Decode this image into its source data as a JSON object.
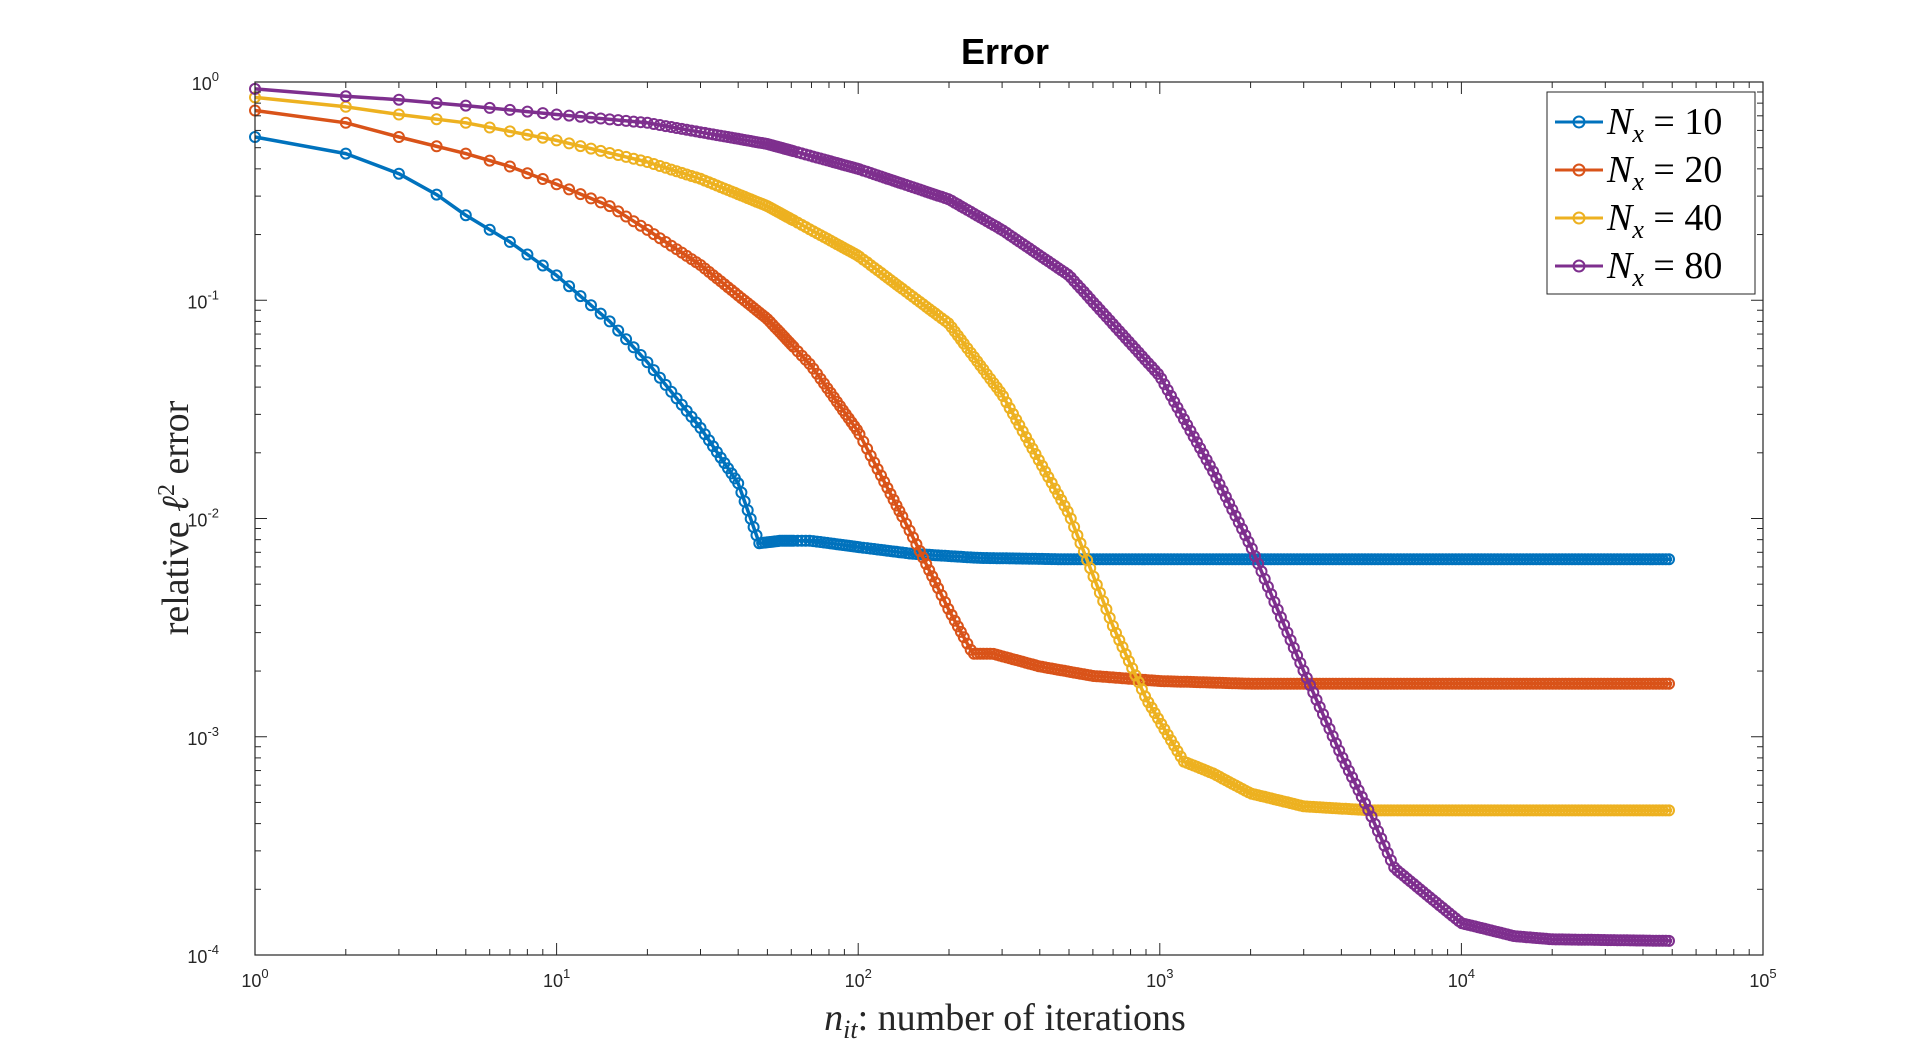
{
  "chart_data": {
    "type": "line",
    "title": "Error",
    "xlabel": {
      "symbol": "n",
      "subscript": "it",
      "text": ": number of iterations"
    },
    "ylabel": {
      "text_before": "relative ",
      "symbol": "ℓ",
      "superscript": "2",
      "text_after": " error"
    },
    "xscale": "log",
    "yscale": "log",
    "xlim": [
      1,
      100000
    ],
    "ylim": [
      0.0001,
      1
    ],
    "xticks": [
      {
        "base": "10",
        "exp": "0",
        "value": 1
      },
      {
        "base": "10",
        "exp": "1",
        "value": 10
      },
      {
        "base": "10",
        "exp": "2",
        "value": 100
      },
      {
        "base": "10",
        "exp": "3",
        "value": 1000
      },
      {
        "base": "10",
        "exp": "4",
        "value": 10000
      },
      {
        "base": "10",
        "exp": "5",
        "value": 100000
      }
    ],
    "yticks": [
      {
        "base": "10",
        "exp": "0",
        "value": 1
      },
      {
        "base": "10",
        "exp": "-1",
        "value": 0.1
      },
      {
        "base": "10",
        "exp": "-2",
        "value": 0.01
      },
      {
        "base": "10",
        "exp": "-3",
        "value": 0.001
      },
      {
        "base": "10",
        "exp": "-4",
        "value": 0.0001
      }
    ],
    "grid": false,
    "legend_position": "top-right",
    "series": [
      {
        "name": "N_x = 10",
        "legend": {
          "symbol": "N",
          "subscript": "x",
          "text": " = 10"
        },
        "color": "#0072BD",
        "points": [
          [
            1,
            0.56
          ],
          [
            2,
            0.47
          ],
          [
            3,
            0.38
          ],
          [
            4,
            0.305
          ],
          [
            5,
            0.245
          ],
          [
            7,
            0.185
          ],
          [
            10,
            0.13
          ],
          [
            15,
            0.08
          ],
          [
            20,
            0.052
          ],
          [
            30,
            0.026
          ],
          [
            40,
            0.0145
          ],
          [
            47,
            0.0077
          ],
          [
            55,
            0.0079
          ],
          [
            70,
            0.0079
          ],
          [
            100,
            0.0074
          ],
          [
            150,
            0.0069
          ],
          [
            250,
            0.0066
          ],
          [
            500,
            0.0065
          ],
          [
            2000,
            0.0065
          ],
          [
            50000,
            0.0065
          ]
        ]
      },
      {
        "name": "N_x = 20",
        "legend": {
          "symbol": "N",
          "subscript": "x",
          "text": " = 20"
        },
        "color": "#D95319",
        "points": [
          [
            1,
            0.74
          ],
          [
            2,
            0.65
          ],
          [
            3,
            0.56
          ],
          [
            5,
            0.47
          ],
          [
            7,
            0.41
          ],
          [
            10,
            0.34
          ],
          [
            15,
            0.27
          ],
          [
            20,
            0.21
          ],
          [
            30,
            0.145
          ],
          [
            50,
            0.082
          ],
          [
            70,
            0.05
          ],
          [
            100,
            0.025
          ],
          [
            150,
            0.0085
          ],
          [
            200,
            0.0038
          ],
          [
            240,
            0.0024
          ],
          [
            280,
            0.0024
          ],
          [
            400,
            0.0021
          ],
          [
            600,
            0.0019
          ],
          [
            1000,
            0.0018
          ],
          [
            2000,
            0.00175
          ],
          [
            50000,
            0.00175
          ]
        ]
      },
      {
        "name": "N_x = 40",
        "legend": {
          "symbol": "N",
          "subscript": "x",
          "text": " = 40"
        },
        "color": "#EDB120",
        "points": [
          [
            1,
            0.85
          ],
          [
            2,
            0.77
          ],
          [
            3,
            0.71
          ],
          [
            5,
            0.65
          ],
          [
            10,
            0.54
          ],
          [
            20,
            0.43
          ],
          [
            30,
            0.36
          ],
          [
            50,
            0.27
          ],
          [
            100,
            0.16
          ],
          [
            200,
            0.078
          ],
          [
            300,
            0.037
          ],
          [
            500,
            0.0105
          ],
          [
            700,
            0.0032
          ],
          [
            900,
            0.0015
          ],
          [
            1200,
            0.00077
          ],
          [
            1500,
            0.00068
          ],
          [
            2000,
            0.00055
          ],
          [
            3000,
            0.00048
          ],
          [
            5000,
            0.00046
          ],
          [
            50000,
            0.00046
          ]
        ]
      },
      {
        "name": "N_x = 80",
        "legend": {
          "symbol": "N",
          "subscript": "x",
          "text": " = 80"
        },
        "color": "#7E2F8E",
        "points": [
          [
            1,
            0.93
          ],
          [
            2,
            0.86
          ],
          [
            3,
            0.83
          ],
          [
            5,
            0.78
          ],
          [
            10,
            0.71
          ],
          [
            20,
            0.65
          ],
          [
            50,
            0.52
          ],
          [
            100,
            0.4
          ],
          [
            200,
            0.29
          ],
          [
            300,
            0.21
          ],
          [
            500,
            0.13
          ],
          [
            1000,
            0.045
          ],
          [
            1500,
            0.0165
          ],
          [
            2000,
            0.0075
          ],
          [
            3000,
            0.002
          ],
          [
            4000,
            0.00082
          ],
          [
            5000,
            0.00044
          ],
          [
            6000,
            0.00025
          ],
          [
            8000,
            0.00018
          ],
          [
            10000,
            0.00014
          ],
          [
            15000,
            0.000122
          ],
          [
            20000,
            0.000118
          ],
          [
            50000,
            0.000116
          ]
        ]
      }
    ]
  }
}
